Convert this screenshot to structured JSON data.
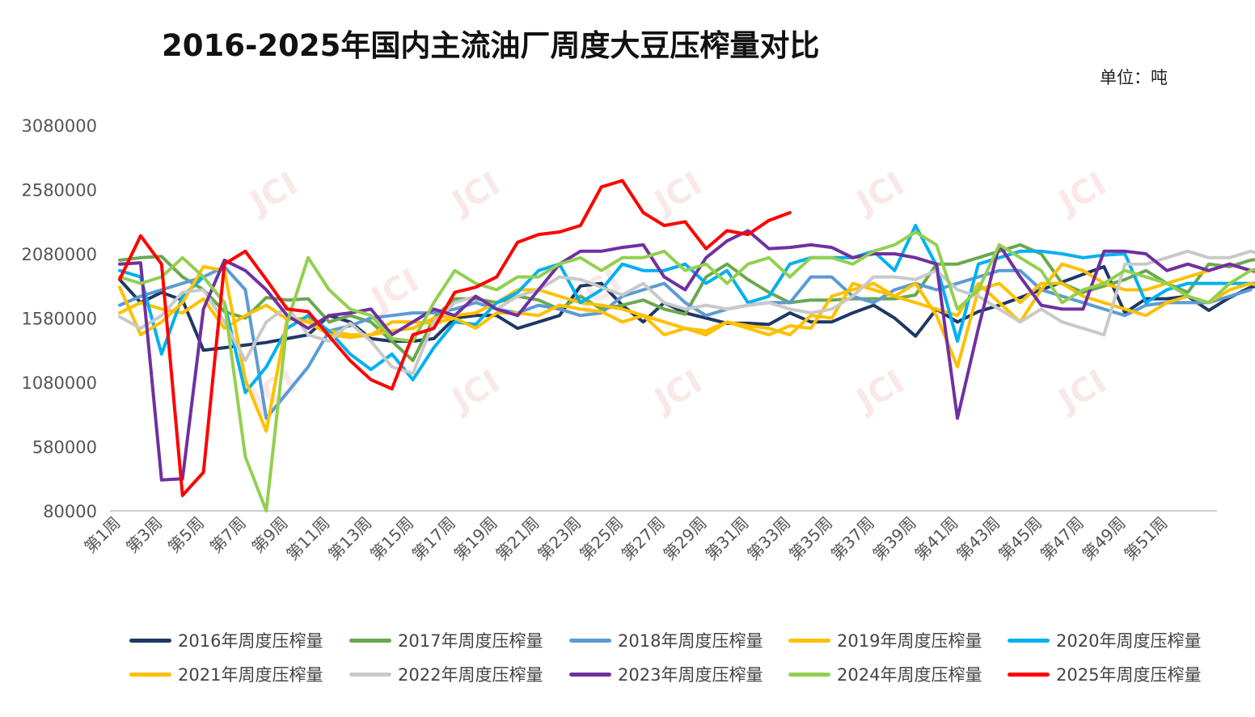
{
  "chart_data": {
    "type": "line",
    "title": "2016-2025年国内主流油厂周度大豆压榨量对比",
    "unit_label": "单位：吨",
    "ylim": [
      80000,
      3080000
    ],
    "y_ticks": [
      80000,
      580000,
      1080000,
      1580000,
      2080000,
      2580000,
      3080000
    ],
    "x_tick_labels": [
      "第1周",
      "第3周",
      "第5周",
      "第7周",
      "第9周",
      "第11周",
      "第13周",
      "第15周",
      "第17周",
      "第19周",
      "第21周",
      "第23周",
      "第25周",
      "第27周",
      "第29周",
      "第31周",
      "第33周",
      "第35周",
      "第37周",
      "第39周",
      "第41周",
      "第43周",
      "第45周",
      "第47周",
      "第49周",
      "第51周"
    ],
    "watermark": "JCI",
    "legend_position": "bottom",
    "grid": false,
    "series": [
      {
        "name": "2016年周度压榨量",
        "color": "#1F3864",
        "values": [
          1880000,
          1700000,
          1780000,
          1720000,
          1330000,
          1350000,
          1370000,
          1390000,
          1420000,
          1450000,
          1600000,
          1550000,
          1420000,
          1400000,
          1400000,
          1420000,
          1580000,
          1600000,
          1600000,
          1500000,
          1550000,
          1600000,
          1830000,
          1850000,
          1680000,
          1550000,
          1700000,
          1620000,
          1580000,
          1540000,
          1540000,
          1530000,
          1620000,
          1550000,
          1550000,
          1620000,
          1680000,
          1580000,
          1440000,
          1650000,
          1550000,
          1630000,
          1680000,
          1740000,
          1800000,
          1860000,
          1920000,
          1980000,
          1620000,
          1730000,
          1730000,
          1750000,
          1640000,
          1740000,
          1820000,
          1850000
        ]
      },
      {
        "name": "2017年周度压榨量",
        "color": "#6AA84F",
        "values": [
          2030000,
          2050000,
          2060000,
          1900000,
          1800000,
          1630000,
          1580000,
          1740000,
          1720000,
          1730000,
          1550000,
          1600000,
          1550000,
          1400000,
          1250000,
          1580000,
          1730000,
          1730000,
          1700000,
          1750000,
          1720000,
          1650000,
          1750000,
          1650000,
          1680000,
          1720000,
          1650000,
          1610000,
          1900000,
          2000000,
          1880000,
          1780000,
          1700000,
          1720000,
          1720000,
          1730000,
          1730000,
          1730000,
          1760000,
          2000000,
          2000000,
          2050000,
          2100000,
          2150000,
          2080000,
          1850000,
          1780000,
          1830000,
          1880000,
          1950000,
          1850000,
          1780000,
          2000000,
          1980000,
          2030000,
          2050000
        ]
      },
      {
        "name": "2018年周度压榨量",
        "color": "#5B9BD5",
        "values": [
          1680000,
          1750000,
          1800000,
          1850000,
          1900000,
          1980000,
          1800000,
          800000,
          1000000,
          1200000,
          1480000,
          1520000,
          1580000,
          1600000,
          1620000,
          1620000,
          1650000,
          1700000,
          1650000,
          1620000,
          1680000,
          1650000,
          1600000,
          1620000,
          1750000,
          1800000,
          1850000,
          1700000,
          1600000,
          1650000,
          1680000,
          1700000,
          1700000,
          1900000,
          1900000,
          1750000,
          1700000,
          1800000,
          1850000,
          1800000,
          1850000,
          1900000,
          1950000,
          1950000,
          1800000,
          1750000,
          1700000,
          1650000,
          1600000,
          1680000,
          1700000,
          1700000,
          1700000,
          1750000,
          1800000
        ]
      },
      {
        "name": "2019年周度压榨量",
        "color": "#FFC000",
        "values": [
          1620000,
          1700000,
          1650000,
          1620000,
          1730000,
          1500000,
          1600000,
          1680000,
          1570000,
          1580000,
          1480000,
          1450000,
          1450000,
          1480000,
          1500000,
          1580000,
          1600000,
          1620000,
          1700000,
          1800000,
          1800000,
          1750000,
          1700000,
          1680000,
          1650000,
          1600000,
          1550000,
          1500000,
          1450000,
          1550000,
          1520000,
          1500000,
          1450000,
          1600000,
          1580000,
          1850000,
          1800000,
          1750000,
          1700000,
          1650000,
          1600000,
          1850000,
          1700000,
          1550000,
          1800000,
          2000000,
          1950000,
          1850000,
          1800000,
          1800000,
          1850000,
          1900000,
          1950000,
          2000000,
          1950000,
          1900000
        ]
      },
      {
        "name": "2020年周度压榨量",
        "color": "#00B0F0",
        "values": [
          1950000,
          1900000,
          1300000,
          1750000,
          1900000,
          1700000,
          1000000,
          1200000,
          1500000,
          1600000,
          1480000,
          1300000,
          1180000,
          1300000,
          1100000,
          1350000,
          1550000,
          1530000,
          1700000,
          1780000,
          1950000,
          2000000,
          1700000,
          1800000,
          2000000,
          1950000,
          1950000,
          2000000,
          1850000,
          1950000,
          1700000,
          1750000,
          2000000,
          2050000,
          2050000,
          2050000,
          2100000,
          1950000,
          2300000,
          1990000,
          1400000,
          2000000,
          2050000,
          2100000,
          2100000,
          2080000,
          2050000,
          2070000,
          2080000,
          1700000,
          1800000,
          1850000,
          1850000,
          1850000,
          1850000,
          1850000
        ]
      },
      {
        "name": "2021年周度压榨量",
        "color": "#FFC000",
        "values": [
          1820000,
          1450000,
          1550000,
          1700000,
          1980000,
          1950000,
          1100000,
          700000,
          1580000,
          1550000,
          1450000,
          1430000,
          1450000,
          1550000,
          1550000,
          1540000,
          1580000,
          1500000,
          1620000,
          1620000,
          1600000,
          1680000,
          1650000,
          1630000,
          1550000,
          1600000,
          1450000,
          1500000,
          1480000,
          1550000,
          1500000,
          1450000,
          1520000,
          1500000,
          1750000,
          1800000,
          1850000,
          1750000,
          1850000,
          1600000,
          1200000,
          1800000,
          1850000,
          1700000,
          1850000,
          1850000,
          1750000,
          1700000,
          1650000,
          1600000,
          1700000,
          1750000,
          1700000,
          1800000,
          1850000,
          1800000
        ]
      },
      {
        "name": "2022年周度压榨量",
        "color": "#C9C9C9",
        "values": [
          1590000,
          1500000,
          1600000,
          1780000,
          1800000,
          1550000,
          1250000,
          1550000,
          1670000,
          1450000,
          1400000,
          1540000,
          1400000,
          1200000,
          1150000,
          1550000,
          1700000,
          1750000,
          1650000,
          1750000,
          1800000,
          1900000,
          1880000,
          1820000,
          1760000,
          1850000,
          1700000,
          1650000,
          1680000,
          1650000,
          1680000,
          1700000,
          1650000,
          1620000,
          1650000,
          1750000,
          1900000,
          1900000,
          1880000,
          1950000,
          1800000,
          1750000,
          1650000,
          1550000,
          1650000,
          1550000,
          1500000,
          1450000,
          2000000,
          2000000,
          2050000,
          2100000,
          2050000,
          2050000,
          2100000,
          2050000
        ]
      },
      {
        "name": "2023年周度压榨量",
        "color": "#7030A0",
        "values": [
          2000000,
          2010000,
          320000,
          330000,
          1650000,
          2030000,
          1950000,
          1800000,
          1600000,
          1500000,
          1600000,
          1620000,
          1650000,
          1450000,
          1550000,
          1650000,
          1600000,
          1750000,
          1650000,
          1600000,
          1800000,
          2000000,
          2100000,
          2100000,
          2130000,
          2150000,
          1900000,
          1800000,
          2050000,
          2180000,
          2260000,
          2120000,
          2130000,
          2150000,
          2130000,
          2050000,
          2080000,
          2080000,
          2050000,
          2000000,
          800000,
          1500000,
          2150000,
          1900000,
          1680000,
          1650000,
          1650000,
          2100000,
          2100000,
          2080000,
          1950000,
          2000000,
          1950000,
          2000000,
          1950000,
          1950000
        ]
      },
      {
        "name": "2024年周度压榨量",
        "color": "#92D050",
        "values": [
          1900000,
          1850000,
          1900000,
          2050000,
          1900000,
          1700000,
          500000,
          80000,
          1550000,
          2050000,
          1800000,
          1650000,
          1600000,
          1420000,
          1400000,
          1700000,
          1950000,
          1850000,
          1800000,
          1900000,
          1900000,
          2000000,
          2050000,
          1950000,
          2050000,
          2050000,
          2100000,
          1950000,
          2000000,
          1850000,
          2000000,
          2050000,
          1900000,
          2050000,
          2050000,
          2000000,
          2100000,
          2150000,
          2250000,
          2150000,
          1650000,
          1800000,
          2150000,
          2050000,
          1950000,
          1700000,
          1800000,
          1850000,
          1950000,
          1900000,
          1850000,
          1750000,
          1700000,
          1850000,
          1950000,
          2000000
        ]
      },
      {
        "name": "2025年周度压榨量",
        "color": "#FF0000",
        "values": [
          1880000,
          2220000,
          2000000,
          200000,
          380000,
          2000000,
          2100000,
          1880000,
          1650000,
          1630000,
          1440000,
          1250000,
          1100000,
          1030000,
          1450000,
          1500000,
          1780000,
          1820000,
          1900000,
          2170000,
          2230000,
          2250000,
          2300000,
          2600000,
          2650000,
          2400000,
          2300000,
          2330000,
          2120000,
          2260000,
          2230000,
          2340000,
          2400000
        ]
      }
    ]
  }
}
